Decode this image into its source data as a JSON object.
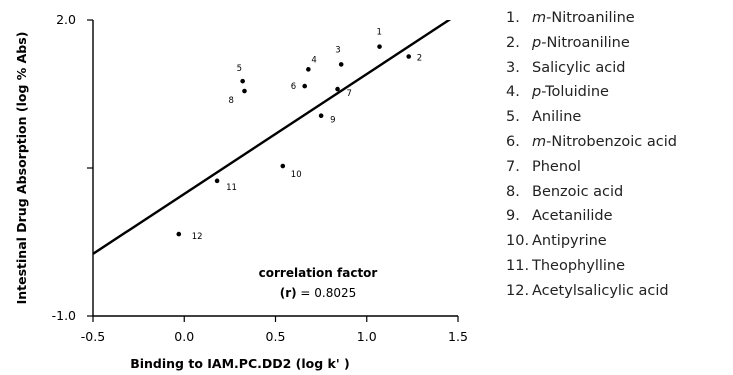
{
  "chart_data": {
    "type": "scatter",
    "xlabel": "Binding to IAM.PC.DD2 (log k' )",
    "ylabel": "Intestinal Drug Absorption (log % Abs)",
    "xlim": [
      -0.5,
      1.5
    ],
    "ylim": [
      -1.0,
      2.0
    ],
    "x_ticks": [
      "-0.5",
      "0.0",
      "0.5",
      "1.0",
      "1.5"
    ],
    "x_tick_values": [
      -0.5,
      0.0,
      0.5,
      1.0,
      1.5
    ],
    "y_ticks": [
      "2.0",
      "-1.0"
    ],
    "y_tick_values": [
      2.0,
      -1.0
    ],
    "y_minor_tick_values": [
      0.5
    ],
    "grid": false,
    "points": [
      {
        "label": "1",
        "x": 1.07,
        "y": 1.73
      },
      {
        "label": "2",
        "x": 1.23,
        "y": 1.63
      },
      {
        "label": "3",
        "x": 0.86,
        "y": 1.55
      },
      {
        "label": "4",
        "x": 0.68,
        "y": 1.5
      },
      {
        "label": "5",
        "x": 0.32,
        "y": 1.38
      },
      {
        "label": "6",
        "x": 0.66,
        "y": 1.33
      },
      {
        "label": "7",
        "x": 0.84,
        "y": 1.3
      },
      {
        "label": "8",
        "x": 0.33,
        "y": 1.28
      },
      {
        "label": "9",
        "x": 0.75,
        "y": 1.03
      },
      {
        "label": "10",
        "x": 0.54,
        "y": 0.52
      },
      {
        "label": "11",
        "x": 0.18,
        "y": 0.37
      },
      {
        "label": "12",
        "x": -0.03,
        "y": -0.17
      }
    ],
    "regression": {
      "x": [
        -0.5,
        1.5
      ],
      "y": [
        -0.37,
        2.06
      ]
    },
    "annotation": {
      "line1": "correlation factor",
      "line2_bold": "(r)",
      "line2_rest": " = 0.8025"
    }
  },
  "legend": [
    {
      "num": "1.",
      "prefix": "m",
      "name": "-Nitroaniline"
    },
    {
      "num": "2.",
      "prefix": "p",
      "name": "-Nitroaniline"
    },
    {
      "num": "3.",
      "prefix": "",
      "name": "Salicylic acid"
    },
    {
      "num": "4.",
      "prefix": "p",
      "name": "-Toluidine"
    },
    {
      "num": "5.",
      "prefix": "",
      "name": "Aniline"
    },
    {
      "num": "6.",
      "prefix": "m",
      "name": "-Nitrobenzoic acid"
    },
    {
      "num": "7.",
      "prefix": "",
      "name": "Phenol"
    },
    {
      "num": "8.",
      "prefix": "",
      "name": "Benzoic acid"
    },
    {
      "num": "9.",
      "prefix": "",
      "name": "Acetanilide"
    },
    {
      "num": "10.",
      "prefix": "",
      "name": "Antipyrine"
    },
    {
      "num": "11.",
      "prefix": "",
      "name": "Theophylline"
    },
    {
      "num": "12.",
      "prefix": "",
      "name": "Acetylsalicylic acid"
    }
  ]
}
